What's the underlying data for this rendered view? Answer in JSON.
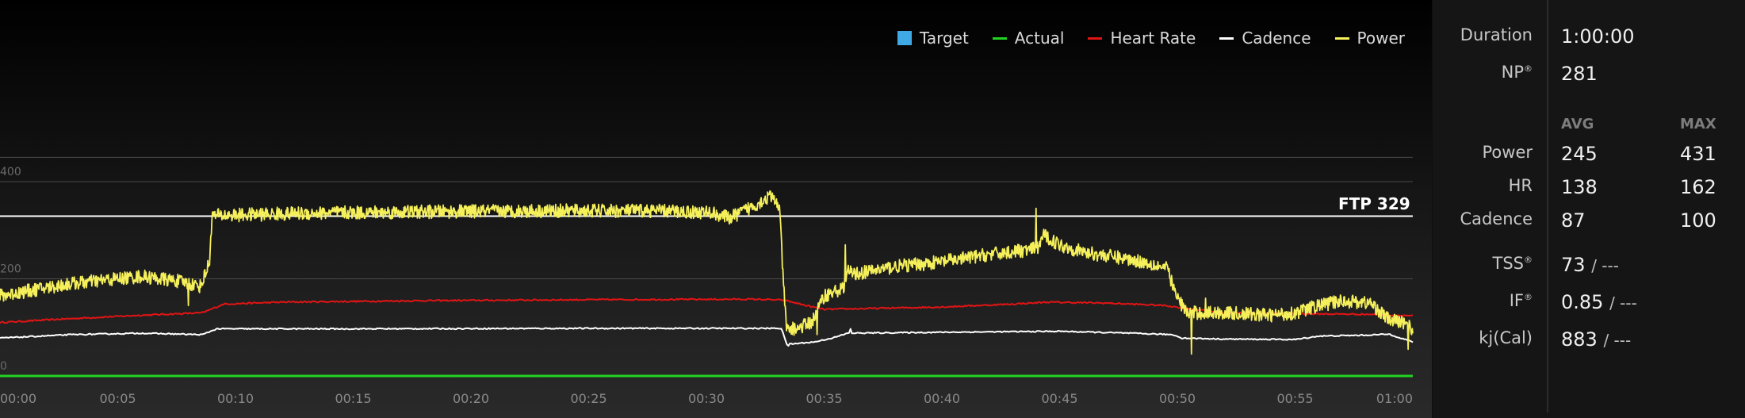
{
  "legend": [
    {
      "label": "Target",
      "color": "#3fa9e6",
      "kind": "box"
    },
    {
      "label": "Actual",
      "color": "#22d322",
      "kind": "line"
    },
    {
      "label": "Heart Rate",
      "color": "#e11414",
      "kind": "line"
    },
    {
      "label": "Cadence",
      "color": "#ffffff",
      "kind": "line"
    },
    {
      "label": "Power",
      "color": "#f5f05a",
      "kind": "line"
    }
  ],
  "ftp_label": "FTP 329",
  "stats": {
    "duration_label": "Duration",
    "duration_value": "1:00:00",
    "np_label": "NP",
    "np_mark": "®",
    "np_value": "281",
    "avg_head": "AVG",
    "max_head": "MAX",
    "power_label": "Power",
    "power_avg": "245",
    "power_max": "431",
    "hr_label": "HR",
    "hr_avg": "138",
    "hr_max": "162",
    "cadence_label": "Cadence",
    "cadence_avg": "87",
    "cadence_max": "100",
    "tss_label": "TSS",
    "tss_mark": "®",
    "tss_value": "73",
    "tss_suffix": "/ ---",
    "if_label": "IF",
    "if_mark": "®",
    "if_value": "0.85",
    "if_suffix": "/ ---",
    "kj_label": "kj(Cal)",
    "kj_value": "883",
    "kj_suffix": "/ ---"
  },
  "chart_data": {
    "type": "line",
    "x_unit": "minutes",
    "xlim": [
      0,
      60
    ],
    "ylim": [
      0,
      450
    ],
    "x_ticks": [
      {
        "v": 0,
        "label": "00:00"
      },
      {
        "v": 5,
        "label": "00:05"
      },
      {
        "v": 10,
        "label": "00:10"
      },
      {
        "v": 15,
        "label": "00:15"
      },
      {
        "v": 20,
        "label": "00:20"
      },
      {
        "v": 25,
        "label": "00:25"
      },
      {
        "v": 30,
        "label": "00:30"
      },
      {
        "v": 35,
        "label": "00:35"
      },
      {
        "v": 40,
        "label": "00:40"
      },
      {
        "v": 45,
        "label": "00:45"
      },
      {
        "v": 50,
        "label": "00:50"
      },
      {
        "v": 55,
        "label": "00:55"
      },
      {
        "v": 60,
        "label": "01:00"
      }
    ],
    "y_ticks": [
      {
        "v": 0,
        "label": "0"
      },
      {
        "v": 200,
        "label": "200"
      },
      {
        "v": 400,
        "label": "400"
      }
    ],
    "gridlines": [
      0,
      200,
      400,
      450
    ],
    "ftp": 329,
    "series": [
      {
        "name": "Power",
        "color": "#f5f05a",
        "noise": 14,
        "points": [
          [
            0,
            165
          ],
          [
            3,
            190
          ],
          [
            6,
            205
          ],
          [
            7.6,
            195
          ],
          [
            8.5,
            185
          ],
          [
            8.6,
            195
          ],
          [
            8.9,
            235
          ],
          [
            9.0,
            330
          ],
          [
            13,
            335
          ],
          [
            18,
            338
          ],
          [
            23,
            340
          ],
          [
            28,
            340
          ],
          [
            30.2,
            336
          ],
          [
            31,
            325
          ],
          [
            32,
            350
          ],
          [
            32.7,
            370
          ],
          [
            33.1,
            350
          ],
          [
            33.25,
            210
          ],
          [
            33.4,
            95
          ],
          [
            34.0,
            100
          ],
          [
            34.5,
            112
          ],
          [
            35.0,
            165
          ],
          [
            35.8,
            180
          ],
          [
            36.0,
            215
          ],
          [
            36.3,
            210
          ],
          [
            38,
            225
          ],
          [
            40,
            235
          ],
          [
            42,
            250
          ],
          [
            43.8,
            260
          ],
          [
            44.1,
            265
          ],
          [
            44.3,
            290
          ],
          [
            45,
            270
          ],
          [
            46,
            255
          ],
          [
            48,
            240
          ],
          [
            49,
            230
          ],
          [
            49.6,
            220
          ],
          [
            49.9,
            170
          ],
          [
            50.4,
            130
          ],
          [
            52,
            130
          ],
          [
            54,
            125
          ],
          [
            55,
            130
          ],
          [
            56,
            145
          ],
          [
            57,
            155
          ],
          [
            58.2,
            150
          ],
          [
            59,
            115
          ],
          [
            59.7,
            110
          ],
          [
            60,
            95
          ]
        ],
        "spikes": [
          [
            8,
            145
          ],
          [
            34.7,
            85
          ],
          [
            35.9,
            270
          ],
          [
            44.0,
            345
          ],
          [
            50.6,
            45
          ],
          [
            51.2,
            160
          ],
          [
            59.8,
            55
          ]
        ]
      },
      {
        "name": "Heart Rate",
        "color": "#e11414",
        "noise": 1.5,
        "points": [
          [
            0,
            110
          ],
          [
            3,
            118
          ],
          [
            6,
            125
          ],
          [
            8.6,
            130
          ],
          [
            9.5,
            148
          ],
          [
            12,
            152
          ],
          [
            18,
            155
          ],
          [
            25,
            157
          ],
          [
            32,
            158
          ],
          [
            33.3,
            156
          ],
          [
            34.5,
            142
          ],
          [
            35,
            137
          ],
          [
            38,
            140
          ],
          [
            40,
            142
          ],
          [
            43,
            148
          ],
          [
            44.5,
            152
          ],
          [
            47,
            150
          ],
          [
            49.5,
            145
          ],
          [
            50.2,
            140
          ],
          [
            52,
            130
          ],
          [
            55,
            128
          ],
          [
            58,
            127
          ],
          [
            60,
            124
          ]
        ]
      },
      {
        "name": "Cadence",
        "color": "#ffffff",
        "noise": 1.2,
        "points": [
          [
            0,
            78
          ],
          [
            3,
            85
          ],
          [
            6,
            88
          ],
          [
            8.6,
            85
          ],
          [
            9.2,
            97
          ],
          [
            15,
            97
          ],
          [
            25,
            98
          ],
          [
            33.2,
            98
          ],
          [
            33.4,
            65
          ],
          [
            34.6,
            70
          ],
          [
            35.5,
            80
          ],
          [
            36,
            88
          ],
          [
            40,
            90
          ],
          [
            45,
            92
          ],
          [
            48,
            88
          ],
          [
            49.8,
            85
          ],
          [
            50.2,
            78
          ],
          [
            52,
            76
          ],
          [
            55,
            75
          ],
          [
            56,
            82
          ],
          [
            58,
            84
          ],
          [
            59,
            86
          ],
          [
            60,
            70
          ]
        ],
        "spikes": [
          [
            36.1,
            97
          ],
          [
            33.5,
            62
          ]
        ]
      },
      {
        "name": "Actual",
        "color": "#22d322",
        "noise": 0,
        "points": [
          [
            0,
            0
          ],
          [
            60,
            0
          ]
        ]
      }
    ]
  }
}
